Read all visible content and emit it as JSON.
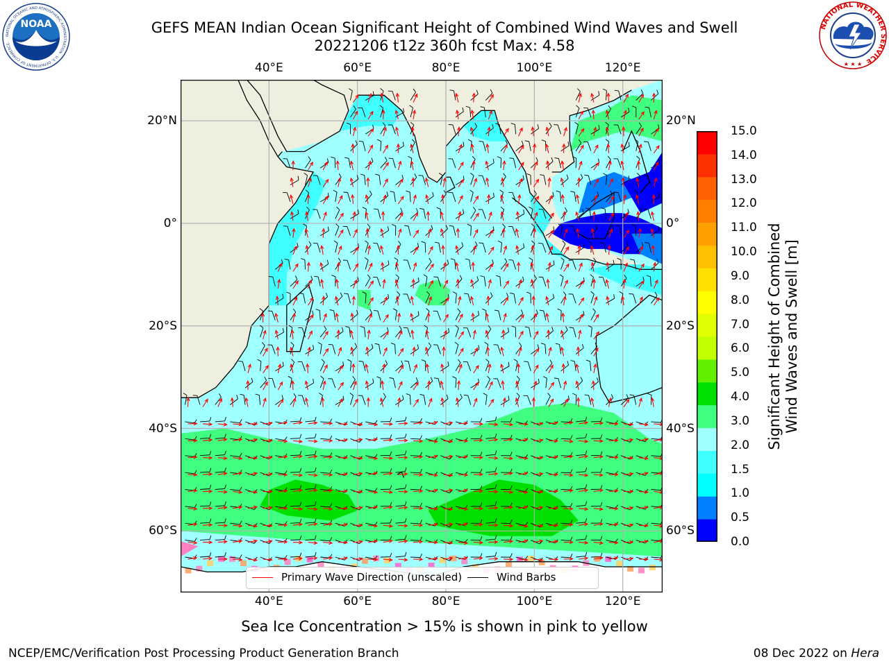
{
  "header": {
    "title_line1": "GEFS MEAN Indian Ocean Significant Height of Combined Wind Waves and Swell",
    "title_line2": "20221206 t12z 360h fcst   Max: 4.58"
  },
  "logos": {
    "noaa_text": "NOAA",
    "noaa_ring_text": "NATIONAL OCEANIC AND ATMOSPHERIC ADMINISTRATION · U.S. DEPARTMENT OF COMMERCE",
    "nws_ring_text": "NATIONAL WEATHER SERVICE"
  },
  "map": {
    "lon_labels": [
      "40°E",
      "60°E",
      "80°E",
      "100°E",
      "120°E"
    ],
    "lat_labels_left": [
      "20°N",
      "0°",
      "20°S",
      "40°S",
      "60°S"
    ],
    "lat_labels_right": [
      "20°N",
      "0°",
      "20°S",
      "40°S",
      "60°S"
    ],
    "lon_range": [
      20,
      129
    ],
    "lat_range": [
      -72,
      28
    ],
    "land_color": "#efefdf",
    "grid_color": "#b0b0b0",
    "arrow_color": "#ff0000",
    "barb_color": "#000000"
  },
  "legend": {
    "wave_label": "Primary Wave Direction (unscaled)",
    "barb_label": "Wind Barbs"
  },
  "colorbar": {
    "title_line1": "Significant Height of Combined",
    "title_line2": "Wind Waves and Swell [m]",
    "ticks": [
      "15.0",
      "14.0",
      "13.0",
      "12.0",
      "11.0",
      "10.0",
      "9.0",
      "8.0",
      "7.0",
      "6.0",
      "5.0",
      "4.0",
      "3.0",
      "2.0",
      "1.5",
      "1.0",
      "0.5",
      "0.0"
    ],
    "colors": [
      "#0000ff",
      "#0080ff",
      "#00ffff",
      "#40ffff",
      "#a0ffff",
      "#40ff80",
      "#00e000",
      "#60f000",
      "#c0ff00",
      "#e0ff00",
      "#ffff00",
      "#ffe000",
      "#ffc000",
      "#ffa000",
      "#ff8000",
      "#ff6000",
      "#ff3000",
      "#ff0000"
    ]
  },
  "caption": "Sea Ice Concentration > 15% is shown in pink to yellow",
  "footer": {
    "left": "NCEP/EMC/Verification Post Processing Product Generation Branch",
    "right_prefix": "08 Dec 2022 on ",
    "right_host": "Hera"
  }
}
